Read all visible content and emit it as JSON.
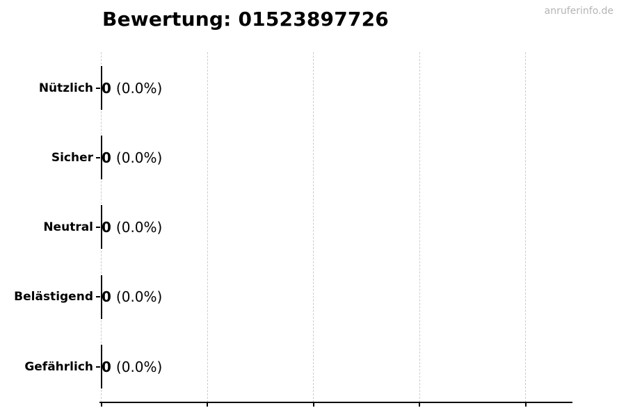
{
  "watermark": {
    "text": "anruferinfo.de",
    "color": "#b4b4b4"
  },
  "chart_data": {
    "type": "bar",
    "orientation": "horizontal",
    "title": "Bewertung: 01523897726",
    "categories": [
      "Nützlich",
      "Sicher",
      "Neutral",
      "Belästigend",
      "Gefährlich"
    ],
    "values": [
      0,
      0,
      0,
      0,
      0
    ],
    "percentages": [
      0.0,
      0.0,
      0.0,
      0.0,
      0.0
    ],
    "value_labels": [
      "0",
      "0",
      "0",
      "0",
      "0"
    ],
    "percent_labels": [
      "(0.0%)",
      "(0.0%)",
      "(0.0%)",
      "(0.0%)",
      "(0.0%)"
    ],
    "xlabel": "",
    "ylabel": "",
    "x_tick_labels": [],
    "xlim": [
      0,
      1
    ],
    "grid": "vertical-dashed",
    "legend": "none",
    "bar_color": "#000000",
    "axis_color": "#000000",
    "grid_color": "#cbcbcb",
    "background": "#ffffff"
  }
}
